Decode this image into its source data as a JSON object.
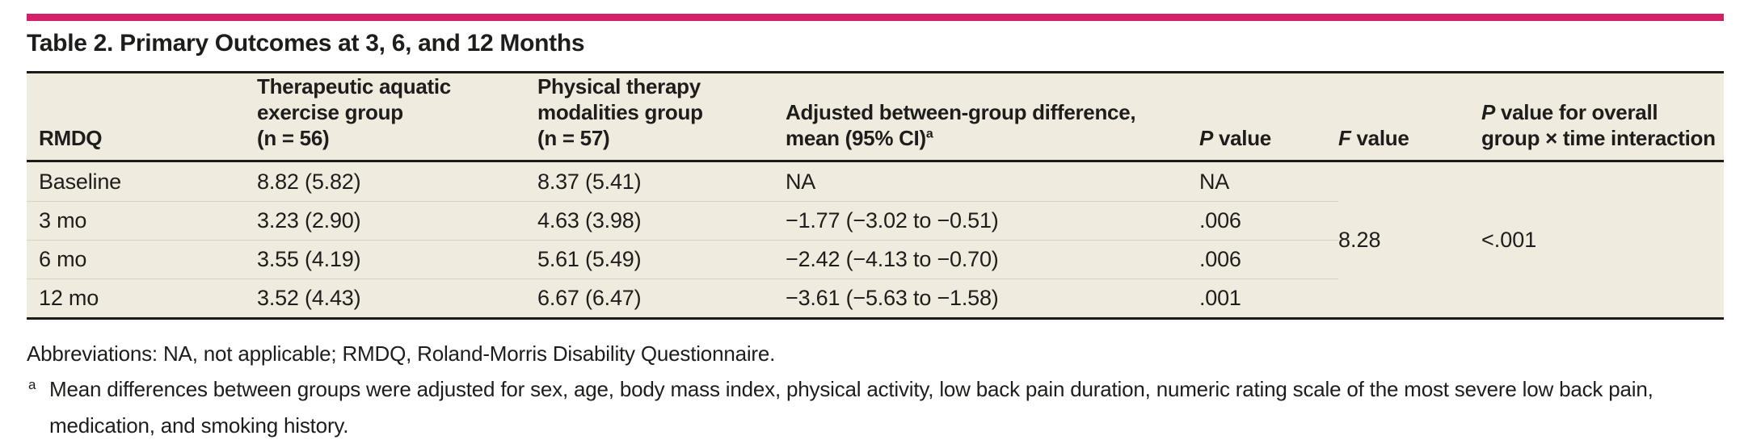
{
  "accent_color": "#d42069",
  "title": "Table 2. Primary Outcomes at 3, 6, and 12 Months",
  "table": {
    "header": {
      "rmdq": "RMDQ",
      "aquatic_line1": "Therapeutic aquatic",
      "aquatic_line2": "exercise group",
      "aquatic_line3": "(n = 56)",
      "pt_line1": "Physical therapy",
      "pt_line2": "modalities group",
      "pt_line3": "(n = 57)",
      "diff_line1": "Adjusted between-group difference,",
      "diff_line2": "mean (95% CI)",
      "diff_sup": "a",
      "p_italic": "P",
      "p_rest": " value",
      "f_italic": "F",
      "f_rest": " value",
      "overall_p_italic": "P",
      "overall_p_rest": " value for overall",
      "overall_line2": "group × time interaction"
    },
    "rows": [
      {
        "label": "Baseline",
        "aquatic": "8.82 (5.82)",
        "pt": "8.37 (5.41)",
        "diff": "NA",
        "p": "NA"
      },
      {
        "label": "3 mo",
        "aquatic": "3.23 (2.90)",
        "pt": "4.63 (3.98)",
        "diff": "−1.77 (−3.02 to −0.51)",
        "p": ".006"
      },
      {
        "label": "6 mo",
        "aquatic": "3.55 (4.19)",
        "pt": "5.61 (5.49)",
        "diff": "−2.42 (−4.13 to −0.70)",
        "p": ".006"
      },
      {
        "label": "12 mo",
        "aquatic": "3.52 (4.43)",
        "pt": "6.67 (6.47)",
        "diff": "−3.61 (−5.63 to −1.58)",
        "p": ".001"
      }
    ],
    "f_value": "8.28",
    "overall_p_value": "<.001"
  },
  "footnotes": {
    "abbreviations": "Abbreviations: NA, not applicable; RMDQ, Roland-Morris Disability Questionnaire.",
    "marker": "a",
    "note_line1": "Mean differences between groups were adjusted for sex, age, body mass index, physical activity, low back pain duration, numeric rating scale of the most severe low back pain,",
    "note_line2": "medication, and smoking history."
  }
}
